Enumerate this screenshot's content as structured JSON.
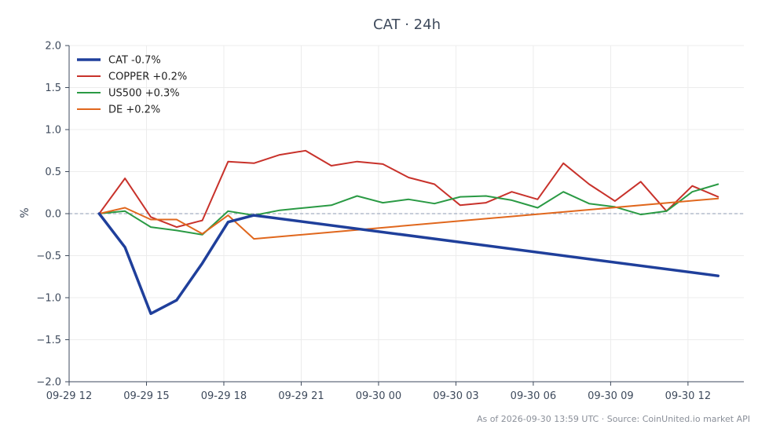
{
  "chart_data": {
    "type": "line",
    "title": "CAT · 24h",
    "xlabel": "",
    "ylabel": "%",
    "ylim": [
      -2.0,
      2.0
    ],
    "yticks": [
      "2.0",
      "1.5",
      "1.0",
      "0.5",
      "0.0",
      "−0.5",
      "−1.0",
      "−1.5",
      "−2.0"
    ],
    "ytick_values": [
      2.0,
      1.5,
      1.0,
      0.5,
      0.0,
      -0.5,
      -1.0,
      -1.5,
      -2.0
    ],
    "xlim": [
      "2026-09-29 12:00",
      "2026-09-30 14:10"
    ],
    "xticks": [
      {
        "label": "09-29 12",
        "time": "2026-09-29 12:00"
      },
      {
        "label": "09-29 15",
        "time": "2026-09-29 15:00"
      },
      {
        "label": "09-29 18",
        "time": "2026-09-29 18:00"
      },
      {
        "label": "09-29 21",
        "time": "2026-09-29 21:00"
      },
      {
        "label": "09-30 00",
        "time": "2026-09-30 00:00"
      },
      {
        "label": "09-30 03",
        "time": "2026-09-30 03:00"
      },
      {
        "label": "09-30 06",
        "time": "2026-09-30 06:00"
      },
      {
        "label": "09-30 09",
        "time": "2026-09-30 09:00"
      },
      {
        "label": "09-30 12",
        "time": "2026-09-30 12:00"
      }
    ],
    "grid": true,
    "zero_line": true,
    "legend_position": "top-left",
    "series": [
      {
        "name": "CAT -0.7%",
        "color": "#1f3f9b",
        "width": 3.5,
        "points": [
          [
            "2026-09-29 13:10",
            0.0
          ],
          [
            "2026-09-29 14:10",
            -0.4
          ],
          [
            "2026-09-29 15:10",
            -1.19
          ],
          [
            "2026-09-29 16:10",
            -1.03
          ],
          [
            "2026-09-29 17:10",
            -0.59
          ],
          [
            "2026-09-29 18:10",
            -0.1
          ],
          [
            "2026-09-29 19:10",
            -0.02
          ],
          [
            "2026-09-30 13:10",
            -0.74
          ]
        ]
      },
      {
        "name": "COPPER +0.2%",
        "color": "#c8322b",
        "width": 2,
        "points": [
          [
            "2026-09-29 13:10",
            0.0
          ],
          [
            "2026-09-29 14:10",
            0.42
          ],
          [
            "2026-09-29 15:10",
            -0.04
          ],
          [
            "2026-09-29 16:10",
            -0.16
          ],
          [
            "2026-09-29 17:10",
            -0.08
          ],
          [
            "2026-09-29 18:10",
            0.62
          ],
          [
            "2026-09-29 19:10",
            0.6
          ],
          [
            "2026-09-29 20:10",
            0.7
          ],
          [
            "2026-09-29 21:10",
            0.75
          ],
          [
            "2026-09-29 22:10",
            0.57
          ],
          [
            "2026-09-29 23:10",
            0.62
          ],
          [
            "2026-09-30 00:10",
            0.59
          ],
          [
            "2026-09-30 01:10",
            0.43
          ],
          [
            "2026-09-30 02:10",
            0.35
          ],
          [
            "2026-09-30 03:10",
            0.1
          ],
          [
            "2026-09-30 04:10",
            0.13
          ],
          [
            "2026-09-30 05:10",
            0.26
          ],
          [
            "2026-09-30 06:10",
            0.17
          ],
          [
            "2026-09-30 07:10",
            0.6
          ],
          [
            "2026-09-30 08:10",
            0.35
          ],
          [
            "2026-09-30 09:10",
            0.15
          ],
          [
            "2026-09-30 10:10",
            0.38
          ],
          [
            "2026-09-30 11:10",
            0.03
          ],
          [
            "2026-09-30 12:10",
            0.33
          ],
          [
            "2026-09-30 13:10",
            0.2
          ]
        ]
      },
      {
        "name": "US500 +0.3%",
        "color": "#2a9a44",
        "width": 2,
        "points": [
          [
            "2026-09-29 13:10",
            0.0
          ],
          [
            "2026-09-29 14:10",
            0.03
          ],
          [
            "2026-09-29 15:10",
            -0.16
          ],
          [
            "2026-09-29 16:10",
            -0.2
          ],
          [
            "2026-09-29 17:10",
            -0.25
          ],
          [
            "2026-09-29 18:10",
            0.03
          ],
          [
            "2026-09-29 19:10",
            -0.02
          ],
          [
            "2026-09-29 20:10",
            0.04
          ],
          [
            "2026-09-29 21:10",
            0.07
          ],
          [
            "2026-09-29 22:10",
            0.1
          ],
          [
            "2026-09-29 23:10",
            0.21
          ],
          [
            "2026-09-30 00:10",
            0.13
          ],
          [
            "2026-09-30 01:10",
            0.17
          ],
          [
            "2026-09-30 02:10",
            0.12
          ],
          [
            "2026-09-30 03:10",
            0.2
          ],
          [
            "2026-09-30 04:10",
            0.21
          ],
          [
            "2026-09-30 05:10",
            0.16
          ],
          [
            "2026-09-30 06:10",
            0.07
          ],
          [
            "2026-09-30 07:10",
            0.26
          ],
          [
            "2026-09-30 08:10",
            0.12
          ],
          [
            "2026-09-30 09:10",
            0.08
          ],
          [
            "2026-09-30 10:10",
            -0.01
          ],
          [
            "2026-09-30 11:10",
            0.03
          ],
          [
            "2026-09-30 12:10",
            0.26
          ],
          [
            "2026-09-30 13:10",
            0.35
          ]
        ]
      },
      {
        "name": "DE +0.2%",
        "color": "#e0671d",
        "width": 2,
        "points": [
          [
            "2026-09-29 13:10",
            0.0
          ],
          [
            "2026-09-29 14:10",
            0.07
          ],
          [
            "2026-09-29 15:10",
            -0.07
          ],
          [
            "2026-09-29 16:10",
            -0.07
          ],
          [
            "2026-09-29 17:10",
            -0.24
          ],
          [
            "2026-09-29 18:10",
            -0.02
          ],
          [
            "2026-09-29 19:10",
            -0.3
          ],
          [
            "2026-09-30 13:10",
            0.18
          ]
        ]
      }
    ],
    "footer": "As of 2026-09-30 13:59 UTC · Source: CoinUnited.io market API"
  }
}
